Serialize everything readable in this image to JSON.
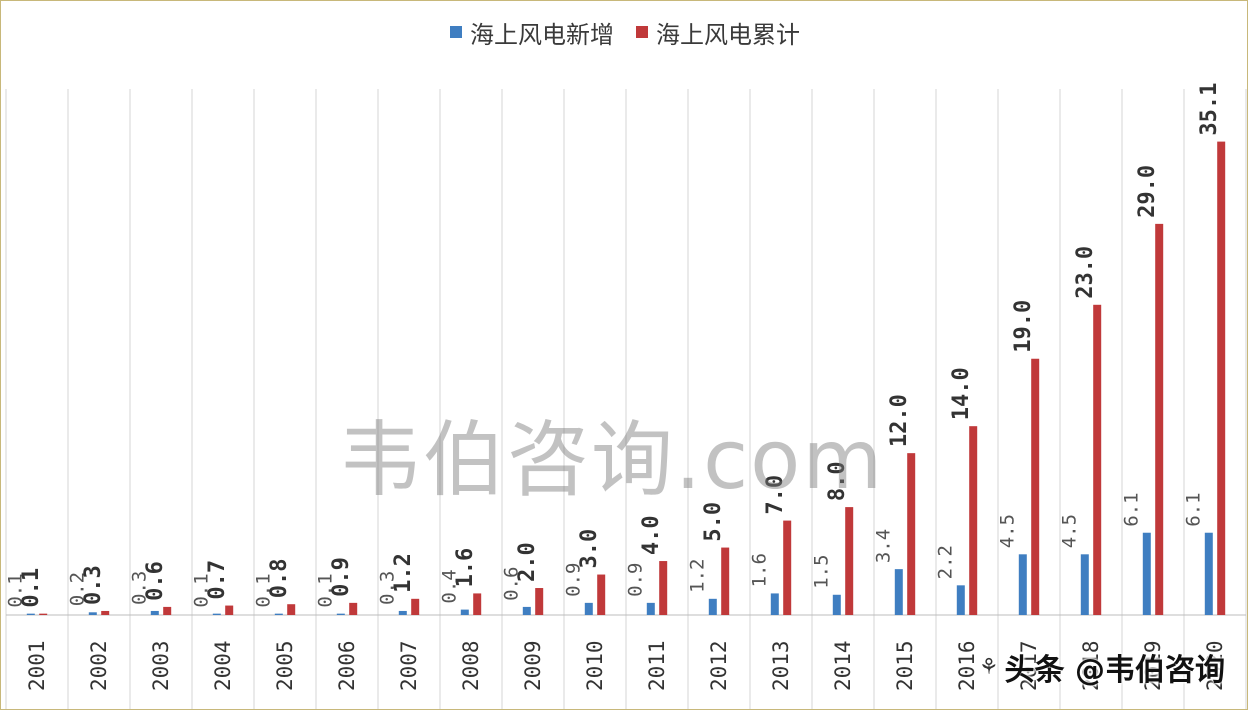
{
  "chart_data": {
    "type": "bar",
    "categories": [
      "2001",
      "2002",
      "2003",
      "2004",
      "2005",
      "2006",
      "2007",
      "2008",
      "2009",
      "2010",
      "2011",
      "2012",
      "2013",
      "2014",
      "2015",
      "2016",
      "2017",
      "2018",
      "2019",
      "2020"
    ],
    "series": [
      {
        "name": "海上风电新增",
        "color": "#3f7ec1",
        "values": [
          0.1,
          0.2,
          0.3,
          0.1,
          0.1,
          0.1,
          0.3,
          0.4,
          0.6,
          0.9,
          0.9,
          1.2,
          1.6,
          1.5,
          3.4,
          2.2,
          4.5,
          4.5,
          6.1,
          6.1
        ],
        "labels": [
          "0.1",
          "0.2",
          "0.3",
          "0.1",
          "0.1",
          "0.1",
          "0.3",
          "0.4",
          "0.6",
          "0.9",
          "0.9",
          "1.2",
          "1.6",
          "1.5",
          "3.4",
          "2.2",
          "4.5",
          "4.5",
          "6.1",
          "6.1"
        ]
      },
      {
        "name": "海上风电累计",
        "color": "#c0393a",
        "values": [
          0.1,
          0.3,
          0.6,
          0.7,
          0.8,
          0.9,
          1.2,
          1.6,
          2.0,
          3.0,
          4.0,
          5.0,
          7.0,
          8.0,
          12.0,
          14.0,
          19.0,
          23.0,
          29.0,
          35.1
        ],
        "labels": [
          "0.1",
          "0.3",
          "0.6",
          "0.7",
          "0.8",
          "0.9",
          "1.2",
          "1.6",
          "2.0",
          "3.0",
          "4.0",
          "5.0",
          "7.0",
          "8.0",
          "12.0",
          "14.0",
          "19.0",
          "23.0",
          "29.0",
          "35.1"
        ]
      }
    ],
    "ylim": [
      0,
      39
    ],
    "grid": "vertical"
  },
  "watermark": "韦伯咨询.com",
  "source_mark": "头条 @韦伯咨询"
}
